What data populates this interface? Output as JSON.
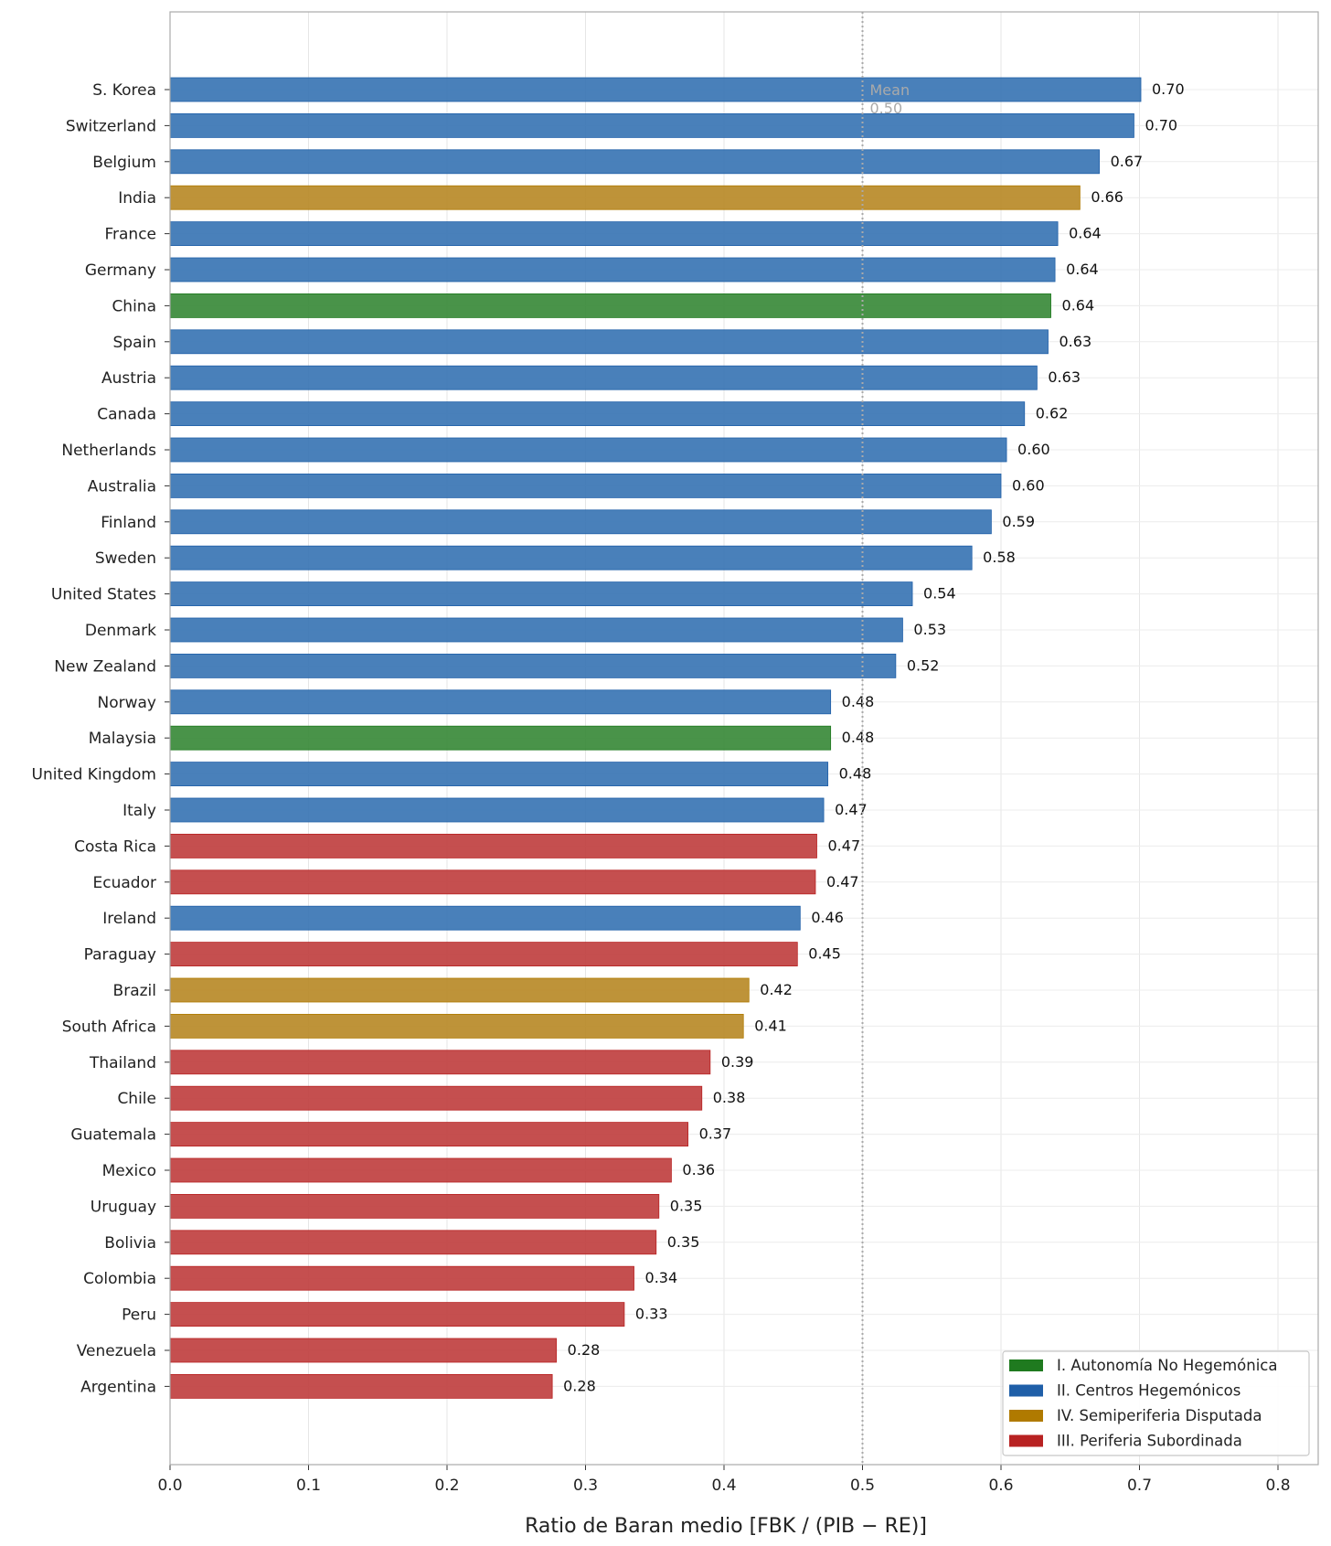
{
  "chart_data": {
    "type": "bar",
    "orientation": "horizontal",
    "xlabel": "Ratio de Baran medio  [FBK / (PIB − RE)]",
    "ylabel": "",
    "xlim": [
      0,
      0.83
    ],
    "xticks": [
      "0.0",
      "0.1",
      "0.2",
      "0.3",
      "0.4",
      "0.5",
      "0.6",
      "0.7",
      "0.8"
    ],
    "grid": true,
    "legend_position": "bottom-right",
    "mean": {
      "value": 0.5,
      "label": "Mean",
      "value_label": "0.50"
    },
    "groups": [
      {
        "key": "I",
        "name": "I. Autonomía No Hegemónica",
        "color": "#3a8a3a",
        "legend_color": "#1f7a1f"
      },
      {
        "key": "II",
        "name": "II. Centros Hegemónicos",
        "color": "#3a75b4",
        "legend_color": "#1f5fa8"
      },
      {
        "key": "IV",
        "name": "IV. Semiperiferia Disputada",
        "color": "#b98a28",
        "legend_color": "#b07a00"
      },
      {
        "key": "III",
        "name": "III. Periferia Subordinada",
        "color": "#c04040",
        "legend_color": "#b82222"
      }
    ],
    "bars": [
      {
        "country": "S. Korea",
        "value": 0.701,
        "label": "0.70",
        "group": "II"
      },
      {
        "country": "Switzerland",
        "value": 0.696,
        "label": "0.70",
        "group": "II"
      },
      {
        "country": "Belgium",
        "value": 0.671,
        "label": "0.67",
        "group": "II"
      },
      {
        "country": "India",
        "value": 0.657,
        "label": "0.66",
        "group": "IV"
      },
      {
        "country": "France",
        "value": 0.641,
        "label": "0.64",
        "group": "II"
      },
      {
        "country": "Germany",
        "value": 0.639,
        "label": "0.64",
        "group": "II"
      },
      {
        "country": "China",
        "value": 0.636,
        "label": "0.64",
        "group": "I"
      },
      {
        "country": "Spain",
        "value": 0.634,
        "label": "0.63",
        "group": "II"
      },
      {
        "country": "Austria",
        "value": 0.626,
        "label": "0.63",
        "group": "II"
      },
      {
        "country": "Canada",
        "value": 0.617,
        "label": "0.62",
        "group": "II"
      },
      {
        "country": "Netherlands",
        "value": 0.604,
        "label": "0.60",
        "group": "II"
      },
      {
        "country": "Australia",
        "value": 0.6,
        "label": "0.60",
        "group": "II"
      },
      {
        "country": "Finland",
        "value": 0.593,
        "label": "0.59",
        "group": "II"
      },
      {
        "country": "Sweden",
        "value": 0.579,
        "label": "0.58",
        "group": "II"
      },
      {
        "country": "United States",
        "value": 0.536,
        "label": "0.54",
        "group": "II"
      },
      {
        "country": "Denmark",
        "value": 0.529,
        "label": "0.53",
        "group": "II"
      },
      {
        "country": "New Zealand",
        "value": 0.524,
        "label": "0.52",
        "group": "II"
      },
      {
        "country": "Norway",
        "value": 0.477,
        "label": "0.48",
        "group": "II"
      },
      {
        "country": "Malaysia",
        "value": 0.477,
        "label": "0.48",
        "group": "I"
      },
      {
        "country": "United Kingdom",
        "value": 0.475,
        "label": "0.48",
        "group": "II"
      },
      {
        "country": "Italy",
        "value": 0.472,
        "label": "0.47",
        "group": "II"
      },
      {
        "country": "Costa Rica",
        "value": 0.467,
        "label": "0.47",
        "group": "III"
      },
      {
        "country": "Ecuador",
        "value": 0.466,
        "label": "0.47",
        "group": "III"
      },
      {
        "country": "Ireland",
        "value": 0.455,
        "label": "0.46",
        "group": "II"
      },
      {
        "country": "Paraguay",
        "value": 0.453,
        "label": "0.45",
        "group": "III"
      },
      {
        "country": "Brazil",
        "value": 0.418,
        "label": "0.42",
        "group": "IV"
      },
      {
        "country": "South Africa",
        "value": 0.414,
        "label": "0.41",
        "group": "IV"
      },
      {
        "country": "Thailand",
        "value": 0.39,
        "label": "0.39",
        "group": "III"
      },
      {
        "country": "Chile",
        "value": 0.384,
        "label": "0.38",
        "group": "III"
      },
      {
        "country": "Guatemala",
        "value": 0.374,
        "label": "0.37",
        "group": "III"
      },
      {
        "country": "Mexico",
        "value": 0.362,
        "label": "0.36",
        "group": "III"
      },
      {
        "country": "Uruguay",
        "value": 0.353,
        "label": "0.35",
        "group": "III"
      },
      {
        "country": "Bolivia",
        "value": 0.351,
        "label": "0.35",
        "group": "III"
      },
      {
        "country": "Colombia",
        "value": 0.335,
        "label": "0.34",
        "group": "III"
      },
      {
        "country": "Peru",
        "value": 0.328,
        "label": "0.33",
        "group": "III"
      },
      {
        "country": "Venezuela",
        "value": 0.279,
        "label": "0.28",
        "group": "III"
      },
      {
        "country": "Argentina",
        "value": 0.276,
        "label": "0.28",
        "group": "III"
      }
    ]
  }
}
